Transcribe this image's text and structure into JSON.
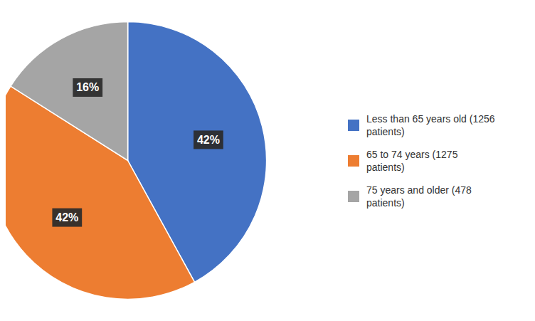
{
  "chart_data": {
    "type": "pie",
    "categories": [
      "Less than 65 years old (1256\npatients)",
      "65 to 74 years (1275\npatients)",
      "75 years and older (478\npatients)"
    ],
    "values": [
      42,
      42,
      16
    ],
    "value_labels": [
      "42%",
      "42%",
      "16%"
    ],
    "colors": [
      "#4472C4",
      "#ED7D31",
      "#A5A5A5"
    ],
    "data_labels": true,
    "legend": "right"
  }
}
